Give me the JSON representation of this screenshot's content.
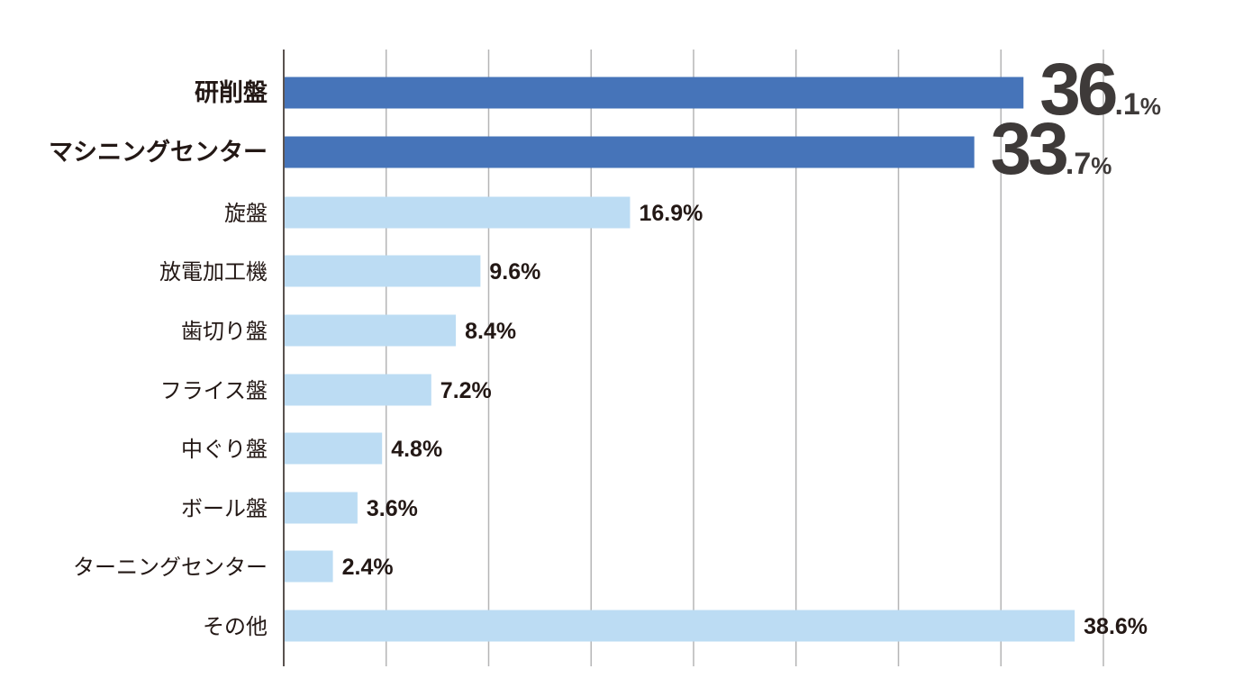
{
  "chart_data": {
    "type": "bar",
    "orientation": "horizontal",
    "categories": [
      "研削盤",
      "マシニングセンター",
      "旋盤",
      "放電加工機",
      "歯切り盤",
      "フライス盤",
      "中ぐり盤",
      "ボール盤",
      "ターニングセンター",
      "その他"
    ],
    "values": [
      36.1,
      33.7,
      16.9,
      9.6,
      8.4,
      7.2,
      4.8,
      3.6,
      2.4,
      38.6
    ],
    "value_labels": [
      "36.1%",
      "33.7%",
      "16.9%",
      "9.6%",
      "8.4%",
      "7.2%",
      "4.8%",
      "3.6%",
      "2.4%",
      "38.6%"
    ],
    "highlighted": [
      true,
      true,
      false,
      false,
      false,
      false,
      false,
      false,
      false,
      false
    ],
    "big_labels": [
      {
        "int": "36",
        "dec": ".1",
        "unit": "%"
      },
      {
        "int": "33",
        "dec": ".7",
        "unit": "%"
      }
    ],
    "xlim": [
      0,
      40
    ],
    "grid": true,
    "colors": {
      "highlight": "#4674b9",
      "normal": "#bcdcf3",
      "grid": "#b5b5b6",
      "axis": "#231815"
    }
  }
}
